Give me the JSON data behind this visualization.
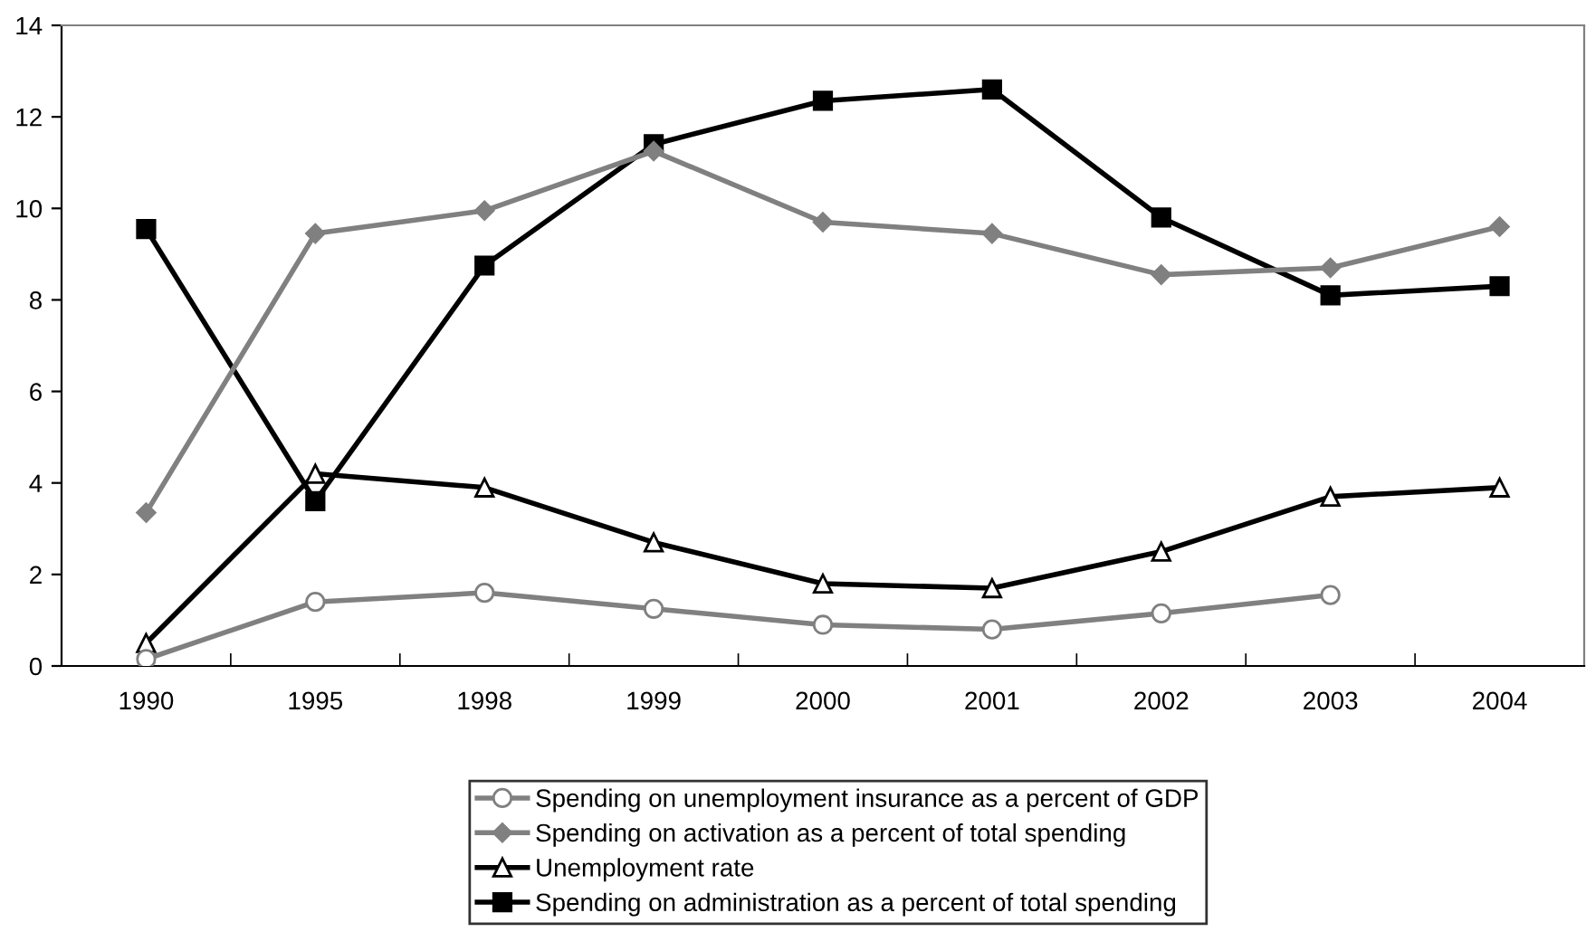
{
  "chart_data": {
    "type": "line",
    "categories": [
      "1990",
      "1995",
      "1998",
      "1999",
      "2000",
      "2001",
      "2002",
      "2003",
      "2004"
    ],
    "series": [
      {
        "name": "Spending on unemployment insurance as a percent of GDP",
        "color": "#808080",
        "marker": "circle",
        "values": [
          0.15,
          1.4,
          1.6,
          1.25,
          0.9,
          0.8,
          1.15,
          1.55,
          null
        ]
      },
      {
        "name": "Spending on activation as a percent of total spending",
        "color": "#808080",
        "marker": "diamond",
        "values": [
          3.35,
          9.45,
          9.95,
          11.25,
          9.7,
          9.45,
          8.55,
          8.7,
          9.6
        ]
      },
      {
        "name": "Unemployment rate",
        "color": "#000000",
        "marker": "triangle",
        "values": [
          0.5,
          4.2,
          3.9,
          2.7,
          1.8,
          1.7,
          2.5,
          3.7,
          3.9
        ]
      },
      {
        "name": "Spending on administration as a percent of total spending",
        "color": "#000000",
        "marker": "square",
        "values": [
          9.55,
          3.6,
          8.75,
          11.4,
          12.35,
          12.6,
          9.8,
          8.1,
          8.3
        ]
      }
    ],
    "ylim": [
      0,
      14
    ],
    "yticks": [
      0,
      2,
      4,
      6,
      8,
      10,
      12,
      14
    ],
    "grid": false,
    "legend": "bottom"
  }
}
